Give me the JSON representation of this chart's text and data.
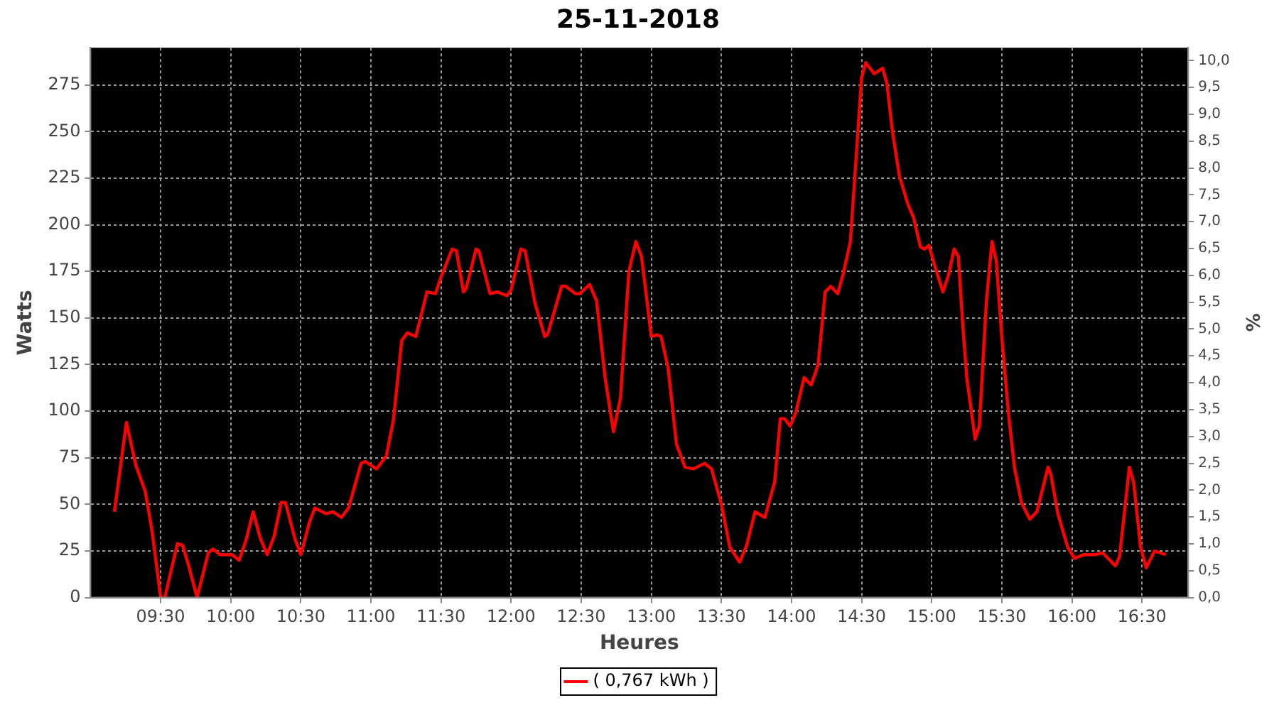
{
  "chart_data": {
    "type": "line",
    "title": "25-11-2018",
    "xlabel": "Heures",
    "ylabel": "Watts",
    "y2label": "%",
    "xlim": [
      9,
      16.83
    ],
    "xticks": [
      {
        "value": 9.5,
        "label": "09:30"
      },
      {
        "value": 10,
        "label": "10:00"
      },
      {
        "value": 10.5,
        "label": "10:30"
      },
      {
        "value": 11,
        "label": "11:00"
      },
      {
        "value": 11.5,
        "label": "11:30"
      },
      {
        "value": 12,
        "label": "12:00"
      },
      {
        "value": 12.5,
        "label": "12:30"
      },
      {
        "value": 13,
        "label": "13:00"
      },
      {
        "value": 13.5,
        "label": "13:30"
      },
      {
        "value": 14,
        "label": "14:00"
      },
      {
        "value": 14.5,
        "label": "14:30"
      },
      {
        "value": 15,
        "label": "15:00"
      },
      {
        "value": 15.5,
        "label": "15:30"
      },
      {
        "value": 16,
        "label": "16:00"
      },
      {
        "value": 16.5,
        "label": "16:30"
      }
    ],
    "ylim": [
      0,
      295
    ],
    "yticks": [
      0,
      25,
      50,
      75,
      100,
      125,
      150,
      175,
      200,
      225,
      250,
      275
    ],
    "y2lim": [
      0,
      10.24
    ],
    "y2ticks": [
      {
        "value": 0,
        "label": "0,0"
      },
      {
        "value": 0.5,
        "label": "0,5"
      },
      {
        "value": 1,
        "label": "1,0"
      },
      {
        "value": 1.5,
        "label": "1,5"
      },
      {
        "value": 2,
        "label": "2,0"
      },
      {
        "value": 2.5,
        "label": "2,5"
      },
      {
        "value": 3,
        "label": "3,0"
      },
      {
        "value": 3.5,
        "label": "3,5"
      },
      {
        "value": 4,
        "label": "4,0"
      },
      {
        "value": 4.5,
        "label": "4,5"
      },
      {
        "value": 5,
        "label": "5,0"
      },
      {
        "value": 5.5,
        "label": "5,5"
      },
      {
        "value": 6,
        "label": "6,0"
      },
      {
        "value": 6.5,
        "label": "6,5"
      },
      {
        "value": 7,
        "label": "7,0"
      },
      {
        "value": 7.5,
        "label": "7,5"
      },
      {
        "value": 8,
        "label": "8,0"
      },
      {
        "value": 8.5,
        "label": "8,5"
      },
      {
        "value": 9,
        "label": "9,0"
      },
      {
        "value": 9.5,
        "label": "9,5"
      },
      {
        "value": 10,
        "label": "10,0"
      }
    ],
    "grid": true,
    "legend": "bottom",
    "marker": "none",
    "line_style": "solid",
    "series": [
      {
        "name": "( 0,767 kWh )",
        "color": "#ff0000",
        "x": [
          9.17,
          9.256,
          9.323,
          9.39,
          9.44,
          9.5,
          9.53,
          9.62,
          9.657,
          9.7,
          9.76,
          9.84,
          9.874,
          9.925,
          10.01,
          10.06,
          10.11,
          10.16,
          10.21,
          10.26,
          10.31,
          10.36,
          10.39,
          10.46,
          10.5,
          10.56,
          10.6,
          10.68,
          10.73,
          10.79,
          10.84,
          10.93,
          10.96,
          11.04,
          11.11,
          11.16,
          11.22,
          11.26,
          11.32,
          11.4,
          11.46,
          11.5,
          11.58,
          11.61,
          11.66,
          11.68,
          11.75,
          11.77,
          11.85,
          11.9,
          11.97,
          12,
          12.07,
          12.1,
          12.17,
          12.24,
          12.26,
          12.36,
          12.39,
          12.46,
          12.49,
          12.56,
          12.61,
          12.67,
          12.73,
          12.78,
          12.84,
          12.89,
          12.93,
          13,
          13.04,
          13.07,
          13.12,
          13.18,
          13.24,
          13.3,
          13.38,
          13.43,
          13.5,
          13.56,
          13.63,
          13.68,
          13.74,
          13.81,
          13.88,
          13.92,
          13.95,
          13.99,
          14.03,
          14.09,
          14.14,
          14.19,
          14.24,
          14.28,
          14.33,
          14.37,
          14.42,
          14.5,
          14.53,
          14.59,
          14.65,
          14.68,
          14.72,
          14.77,
          14.83,
          14.87,
          14.92,
          14.95,
          14.98,
          15.03,
          15.08,
          15.12,
          15.16,
          15.19,
          15.22,
          15.25,
          15.31,
          15.34,
          15.39,
          15.43,
          15.46,
          15.5,
          15.55,
          15.59,
          15.64,
          15.7,
          15.75,
          15.83,
          15.85,
          15.9,
          15.97,
          16.02,
          16.08,
          16.17,
          16.22,
          16.31,
          16.34,
          16.41,
          16.44,
          16.49,
          16.53,
          16.59,
          16.67
        ],
        "values": [
          46,
          94,
          71,
          57,
          35,
          0,
          0,
          29,
          28,
          17,
          0,
          24,
          26,
          23,
          23,
          20,
          31,
          46,
          32,
          23,
          33,
          51,
          51,
          31,
          23,
          40,
          48,
          45,
          46,
          43,
          48,
          72,
          73,
          69,
          76,
          95,
          138,
          142,
          140,
          164,
          163,
          172,
          187,
          186,
          164,
          166,
          187,
          186,
          163,
          164,
          162,
          165,
          187,
          186,
          158,
          140,
          141,
          167,
          167,
          163,
          163,
          168,
          159,
          118,
          89,
          107,
          175,
          191,
          183,
          140,
          141,
          140,
          123,
          82,
          70,
          69,
          72,
          69,
          50,
          27,
          19,
          28,
          46,
          43,
          62,
          96,
          96,
          92,
          99,
          118,
          114,
          125,
          164,
          167,
          163,
          174,
          191,
          279,
          287,
          281,
          284,
          276,
          250,
          226,
          211,
          204,
          188,
          187,
          189,
          176,
          164,
          173,
          187,
          183,
          148,
          118,
          85,
          92,
          159,
          191,
          181,
          140,
          97,
          70,
          51,
          42,
          46,
          70,
          66,
          45,
          27,
          21,
          23,
          23,
          24,
          17,
          22,
          70,
          62,
          27,
          16,
          25,
          23
        ]
      }
    ]
  }
}
